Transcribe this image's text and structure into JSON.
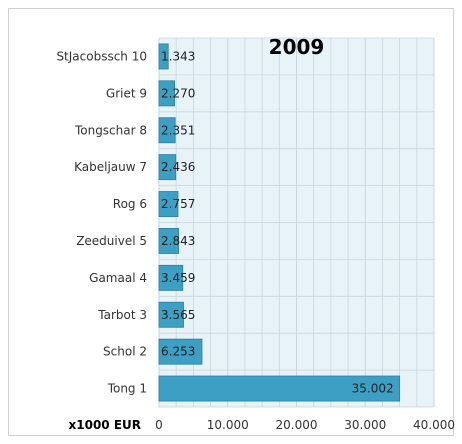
{
  "chart_data": {
    "type": "bar",
    "orientation": "horizontal",
    "title": "2009",
    "xlabel": "x1000 EUR",
    "ylabel": "",
    "categories": [
      "Tong 1",
      "Schol 2",
      "Tarbot 3",
      "Gamaal 4",
      "Zeeduivel 5",
      "Rog 6",
      "Kabeljauw 7",
      "Tongschar 8",
      "Griet 9",
      "StJacobssch 10"
    ],
    "values": [
      35002,
      6253,
      3565,
      3459,
      2843,
      2757,
      2436,
      2351,
      2270,
      1343
    ],
    "value_labels": [
      "35.002",
      "6.253",
      "3.565",
      "3.459",
      "2.843",
      "2.757",
      "2.436",
      "2.351",
      "2.270",
      "1.343"
    ],
    "xlim": [
      0,
      40000
    ],
    "xticks": [
      0,
      10000,
      20000,
      30000,
      40000
    ],
    "xtick_labels": [
      "0",
      "10.000",
      "20.000",
      "30.000",
      "40.000"
    ],
    "grid": true,
    "legend": "none",
    "colors": {
      "bar": "#3d9fc4",
      "bar_edge": "#2b7fa3",
      "plot_bg": "#e8f3f8",
      "grid": "#c8d6de"
    }
  }
}
